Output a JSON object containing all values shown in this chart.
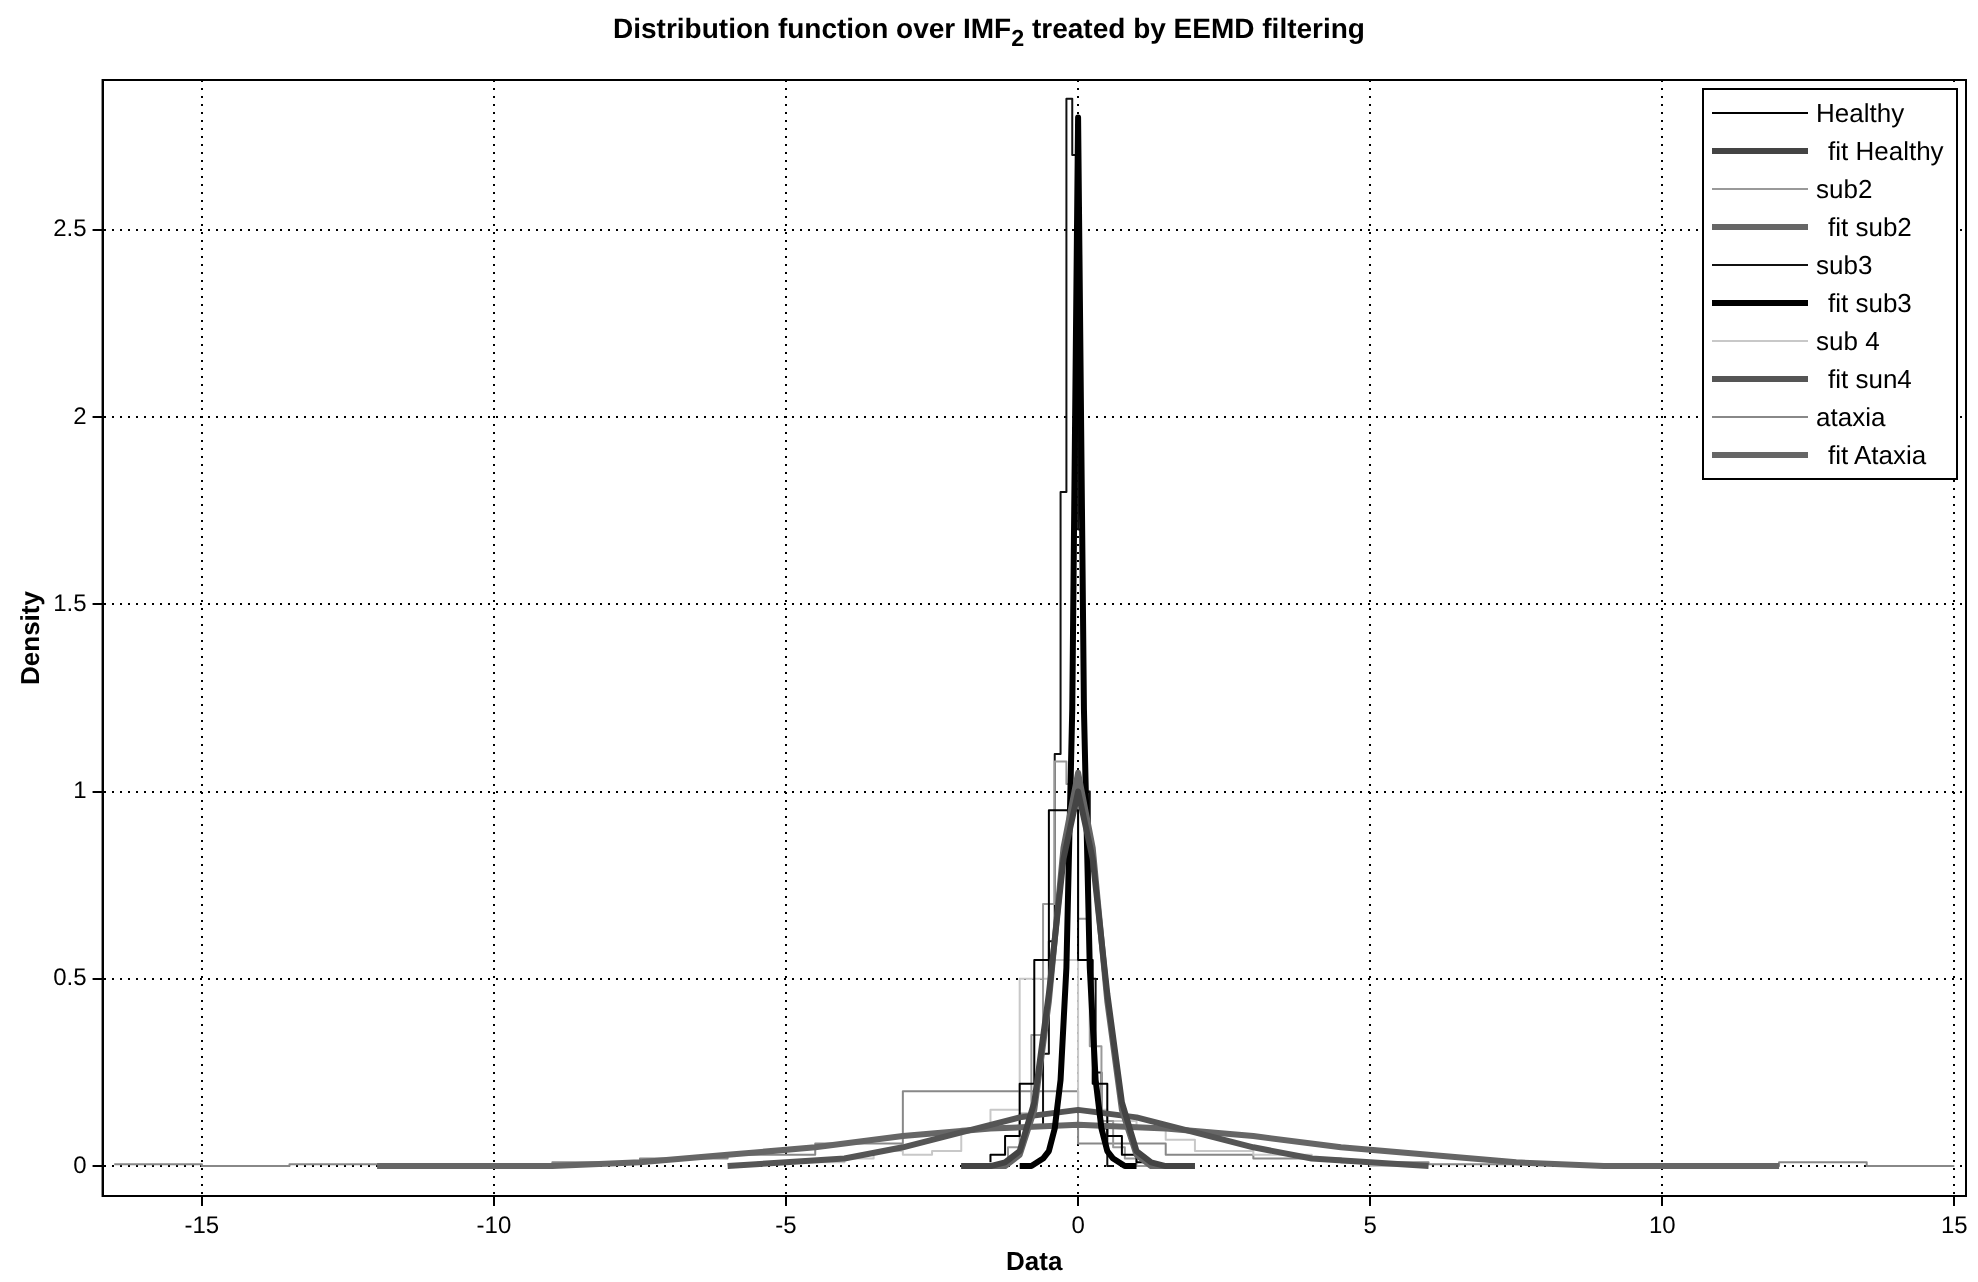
{
  "chart_data": {
    "type": "line",
    "title": "Distribution function over IMF$_{2}$ treated by EEMD filtering",
    "xlabel": "Data",
    "ylabel": "Density",
    "xlim": [
      -16.7,
      15.2
    ],
    "ylim": [
      -0.08,
      2.9
    ],
    "xticks": [
      -15,
      -10,
      -5,
      0,
      5,
      10,
      15
    ],
    "yticks": [
      0,
      0.5,
      1,
      1.5,
      2,
      2.5
    ],
    "grid": true,
    "legend": "top right",
    "series": [
      {
        "name": "Healthy",
        "type": "step",
        "color": "#000000",
        "x": [
          -1.5,
          -1.25,
          -1,
          -0.75,
          -0.5,
          -0.25,
          0,
          0.25,
          0.5,
          0.75,
          1,
          1.25,
          1.5
        ],
        "values": [
          0.01,
          0.03,
          0.08,
          0.22,
          0.55,
          0.95,
          0.95,
          0.55,
          0.22,
          0.08,
          0.03,
          0.01,
          0
        ]
      },
      {
        "name": "fit Healthy",
        "type": "line",
        "color": "#444444",
        "x": [
          -2,
          -1.75,
          -1.5,
          -1.25,
          -1,
          -0.75,
          -0.5,
          -0.25,
          0,
          0.25,
          0.5,
          0.75,
          1,
          1.25,
          1.5,
          1.75,
          2
        ],
        "values": [
          0,
          0,
          0,
          0.01,
          0.04,
          0.17,
          0.46,
          0.82,
          1.0,
          0.82,
          0.46,
          0.17,
          0.04,
          0.01,
          0,
          0,
          0
        ]
      },
      {
        "name": "sub2",
        "type": "step",
        "color": "#999999",
        "x": [
          -1.2,
          -1,
          -0.8,
          -0.6,
          -0.4,
          -0.2,
          0,
          0.2,
          0.4,
          0.6,
          0.8,
          1,
          1.2
        ],
        "values": [
          0.02,
          0.05,
          0.14,
          0.35,
          0.7,
          1.08,
          1.02,
          0.66,
          0.32,
          0.12,
          0.05,
          0.02,
          0
        ]
      },
      {
        "name": "fit sub2",
        "type": "line",
        "color": "#666666",
        "x": [
          -2,
          -1.75,
          -1.5,
          -1.25,
          -1,
          -0.75,
          -0.5,
          -0.25,
          0,
          0.25,
          0.5,
          0.75,
          1,
          1.25,
          1.5,
          1.75,
          2
        ],
        "values": [
          0,
          0,
          0,
          0,
          0.03,
          0.15,
          0.44,
          0.85,
          1.05,
          0.85,
          0.44,
          0.15,
          0.03,
          0,
          0,
          0,
          0
        ]
      },
      {
        "name": "sub3",
        "type": "step",
        "color": "#111111",
        "x": [
          -0.6,
          -0.5,
          -0.4,
          -0.3,
          -0.2,
          -0.1,
          0,
          0.1,
          0.2,
          0.3,
          0.4,
          0.5,
          0.6
        ],
        "values": [
          0.1,
          0.3,
          0.6,
          1.1,
          1.8,
          2.85,
          2.7,
          1.7,
          1.0,
          0.5,
          0.25,
          0.1,
          0
        ]
      },
      {
        "name": "fit sub3",
        "type": "line",
        "color": "#000000",
        "x": [
          -1,
          -0.9,
          -0.8,
          -0.7,
          -0.6,
          -0.5,
          -0.4,
          -0.3,
          -0.2,
          -0.1,
          0,
          0.1,
          0.2,
          0.3,
          0.4,
          0.5,
          0.6,
          0.7,
          0.8,
          0.9,
          1
        ],
        "values": [
          0,
          0,
          0,
          0.01,
          0.02,
          0.04,
          0.1,
          0.23,
          0.53,
          1.22,
          2.8,
          1.22,
          0.53,
          0.23,
          0.1,
          0.04,
          0.02,
          0.01,
          0,
          0,
          0
        ]
      },
      {
        "name": "sub 4",
        "type": "step",
        "color": "#c8c8c8",
        "x": [
          -5.5,
          -5,
          -4.5,
          -4,
          -3.5,
          -3,
          -2.5,
          -2,
          -1.5,
          -1,
          -0.5,
          0,
          0.5,
          1,
          1.5,
          2,
          2.5,
          3,
          3.5,
          4,
          4.5,
          5,
          5.5
        ],
        "values": [
          0.01,
          0.01,
          0.01,
          0.01,
          0.02,
          0.04,
          0.03,
          0.04,
          0.1,
          0.15,
          0.5,
          0.55,
          0.15,
          0.12,
          0.1,
          0.07,
          0.04,
          0.04,
          0.03,
          0.03,
          0.02,
          0.01,
          0
        ]
      },
      {
        "name": "fit sun4",
        "type": "line",
        "color": "#555555",
        "x": [
          -6,
          -5,
          -4,
          -3,
          -2,
          -1,
          0,
          1,
          2,
          3,
          4,
          5,
          6
        ],
        "values": [
          0,
          0.01,
          0.02,
          0.05,
          0.09,
          0.13,
          0.15,
          0.13,
          0.09,
          0.05,
          0.02,
          0.01,
          0
        ]
      },
      {
        "name": "ataxia",
        "type": "step",
        "color": "#888888",
        "x": [
          -16.5,
          -15,
          -13.5,
          -12,
          -10.5,
          -9,
          -7.5,
          -6,
          -4.5,
          -3,
          -1.5,
          0,
          1.5,
          3,
          4.5,
          6,
          7.5,
          9,
          10.5,
          12,
          13.5,
          15
        ],
        "values": [
          0.005,
          0.005,
          0,
          0.005,
          0.005,
          0.005,
          0.01,
          0.02,
          0.03,
          0.06,
          0.2,
          0.2,
          0.06,
          0.03,
          0.02,
          0.01,
          0.005,
          0.005,
          0,
          0,
          0.01,
          0
        ]
      },
      {
        "name": "fit Ataxia",
        "type": "line",
        "color": "#666666",
        "x": [
          -12,
          -10.5,
          -9,
          -7.5,
          -6,
          -4.5,
          -3,
          -1.5,
          0,
          1.5,
          3,
          4.5,
          6,
          7.5,
          9,
          10.5,
          12
        ],
        "values": [
          0,
          0,
          0,
          0.01,
          0.03,
          0.05,
          0.08,
          0.1,
          0.11,
          0.1,
          0.08,
          0.05,
          0.03,
          0.01,
          0,
          0,
          0
        ]
      }
    ]
  }
}
